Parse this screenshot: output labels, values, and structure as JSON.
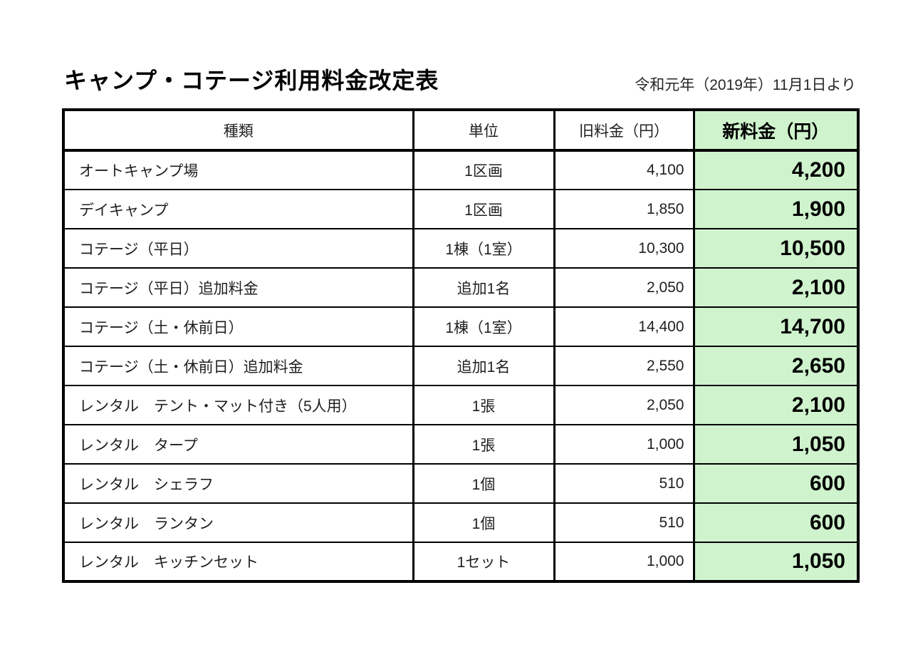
{
  "page": {
    "title": "キャンプ・コテージ利用料金改定表",
    "effective_date_note": "令和元年（2019年）11月1日より"
  },
  "colors": {
    "new_fee_highlight": "#CFF3CD",
    "border": "#000000",
    "background": "#FFFFFF"
  },
  "table": {
    "headers": [
      "種類",
      "単位",
      "旧料金（円）",
      "新料金（円）"
    ],
    "rows": [
      {
        "type": "オートキャンプ場",
        "unit": "1区画",
        "old_fee": "4,100",
        "new_fee": "4,200"
      },
      {
        "type": "デイキャンプ",
        "unit": "1区画",
        "old_fee": "1,850",
        "new_fee": "1,900"
      },
      {
        "type": "コテージ（平日）",
        "unit": "1棟（1室）",
        "old_fee": "10,300",
        "new_fee": "10,500"
      },
      {
        "type": "コテージ（平日）追加料金",
        "unit": "追加1名",
        "old_fee": "2,050",
        "new_fee": "2,100"
      },
      {
        "type": "コテージ（土・休前日）",
        "unit": "1棟（1室）",
        "old_fee": "14,400",
        "new_fee": "14,700"
      },
      {
        "type": "コテージ（土・休前日）追加料金",
        "unit": "追加1名",
        "old_fee": "2,550",
        "new_fee": "2,650"
      },
      {
        "type": "レンタル　テント・マット付き（5人用）",
        "unit": "1張",
        "old_fee": "2,050",
        "new_fee": "2,100"
      },
      {
        "type": "レンタル　タープ",
        "unit": "1張",
        "old_fee": "1,000",
        "new_fee": "1,050"
      },
      {
        "type": "レンタル　シェラフ",
        "unit": "1個",
        "old_fee": "510",
        "new_fee": "600"
      },
      {
        "type": "レンタル　ランタン",
        "unit": "1個",
        "old_fee": "510",
        "new_fee": "600"
      },
      {
        "type": "レンタル　キッチンセット",
        "unit": "1セット",
        "old_fee": "1,000",
        "new_fee": "1,050"
      }
    ]
  }
}
